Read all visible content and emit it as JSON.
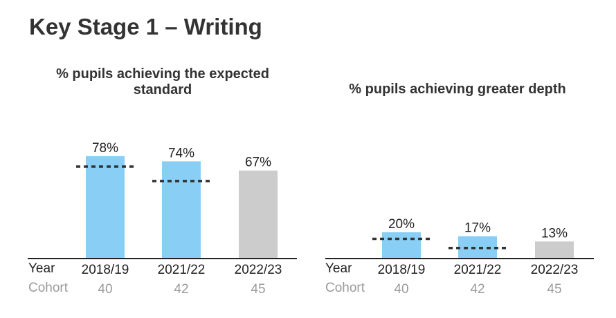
{
  "page": {
    "title": "Key Stage 1 – Writing"
  },
  "row_labels": {
    "year": "Year",
    "cohort": "Cohort"
  },
  "chart_data": [
    {
      "type": "bar",
      "title": "% pupils achieving the expected standard",
      "title_lines": [
        "% pupils achieving the expected",
        "standard"
      ],
      "categories": [
        "2018/19",
        "2021/22",
        "2022/23"
      ],
      "values": [
        78,
        74,
        67
      ],
      "value_labels": [
        "78%",
        "74%",
        "67%"
      ],
      "cohort": [
        "40",
        "42",
        "45"
      ],
      "comparison": [
        70,
        59,
        null
      ],
      "bar_colors": [
        "#89CFF5",
        "#89CFF5",
        "#CCCCCC"
      ],
      "comparison_color": "#333333",
      "ylim": [
        0,
        100
      ]
    },
    {
      "type": "bar",
      "title": "% pupils achieving greater depth",
      "title_lines": [
        "% pupils achieving greater depth"
      ],
      "categories": [
        "2018/19",
        "2021/22",
        "2022/23"
      ],
      "values": [
        20,
        17,
        13
      ],
      "value_labels": [
        "20%",
        "17%",
        "13%"
      ],
      "cohort": [
        "40",
        "42",
        "45"
      ],
      "comparison": [
        15,
        8,
        null
      ],
      "bar_colors": [
        "#89CFF5",
        "#89CFF5",
        "#CCCCCC"
      ],
      "comparison_color": "#333333",
      "ylim": [
        0,
        100
      ]
    }
  ]
}
